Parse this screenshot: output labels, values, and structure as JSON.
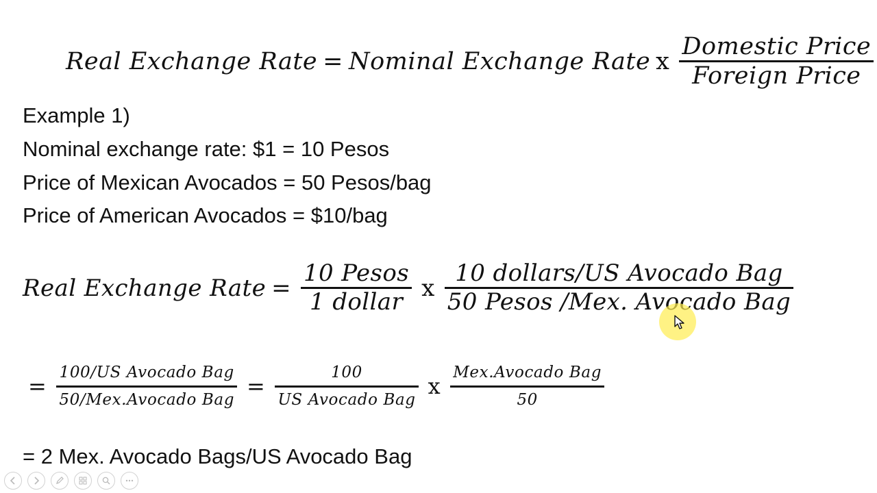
{
  "formula": {
    "lhs": "Real Exchange Rate",
    "equals": "=",
    "term": "Nominal Exchange Rate",
    "times": "x",
    "numerator": "Domestic Price",
    "denominator": "Foreign Price"
  },
  "example": {
    "title": "Example 1)",
    "lines": [
      "Nominal exchange rate: $1 = 10 Pesos",
      "Price of Mexican Avocados = 50 Pesos/bag",
      "Price of American Avocados = $10/bag"
    ]
  },
  "calculation": {
    "lhs": "Real Exchange Rate",
    "equals": "=",
    "frac1_num": "10 Pesos",
    "frac1_den": "1 dollar",
    "times": "x",
    "frac2_num": "10 dollars/US Avocado Bag",
    "frac2_den": "50 Pesos /Mex. Avocado Bag"
  },
  "simplification": {
    "equals": "=",
    "frac1_num": "100/US Avocado Bag",
    "frac1_den": "50/Mex.Avocado Bag",
    "frac2_num": "100",
    "frac2_den": "US Avocado Bag",
    "times": "x",
    "frac3_num": "Mex.Avocado Bag",
    "frac3_den": "50"
  },
  "result": "= 2 Mex. Avocado Bags/US Avocado Bag",
  "toolbar": {
    "icons": [
      "previous-icon",
      "next-icon",
      "pen-icon",
      "slides-icon",
      "zoom-icon",
      "more-icon"
    ]
  },
  "colors": {
    "text": "#111111",
    "highlight": "#ffec50",
    "background": "#ffffff"
  }
}
